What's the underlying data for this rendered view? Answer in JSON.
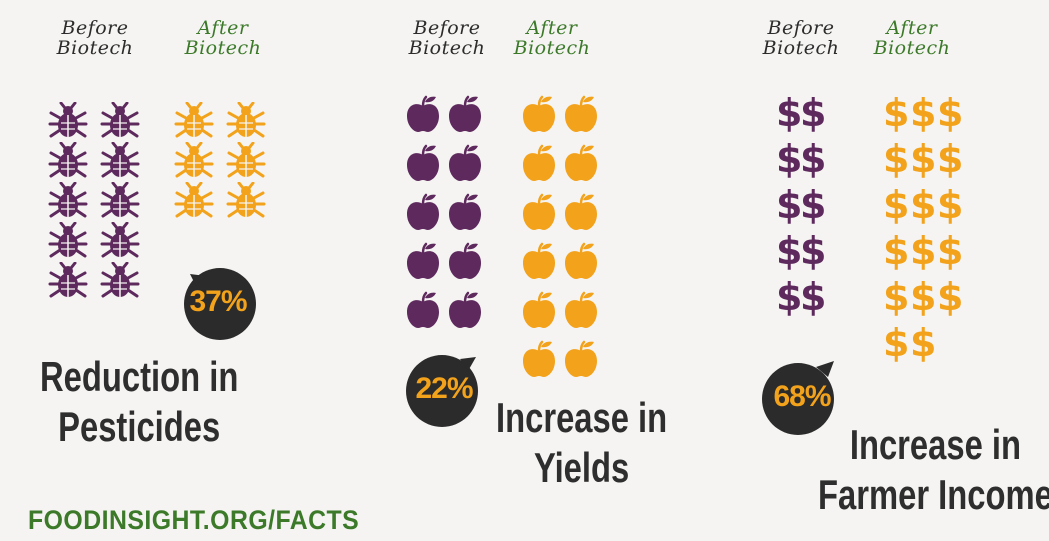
{
  "panels": [
    {
      "before_header": [
        "Before",
        "Biotech"
      ],
      "after_header": [
        "After",
        "Biotech"
      ],
      "icon": "bug-icon",
      "before_count": 10,
      "after_count": 6,
      "percent": "37%",
      "caption": [
        "Reduction in",
        "Pesticides"
      ]
    },
    {
      "before_header": [
        "Before",
        "Biotech"
      ],
      "after_header": [
        "After",
        "Biotech"
      ],
      "icon": "apple-icon",
      "before_count": 10,
      "after_count": 12,
      "percent": "22%",
      "caption": [
        "Increase in",
        "Yields"
      ]
    },
    {
      "before_header": [
        "Before",
        "Biotech"
      ],
      "after_header": [
        "After",
        "Biotech"
      ],
      "icon": "dollar-icon",
      "before_count": 10,
      "after_count": 17,
      "percent": "68%",
      "caption": [
        "Increase in",
        "Farmer Income"
      ]
    }
  ],
  "footer": "FOODINSIGHT.ORG/FACTS",
  "colors": {
    "before": "#5e2a5e",
    "after": "#f2a21b",
    "bubble": "#2b2b2b",
    "caption": "#2e2e2e",
    "footer": "#3c7a2a"
  }
}
